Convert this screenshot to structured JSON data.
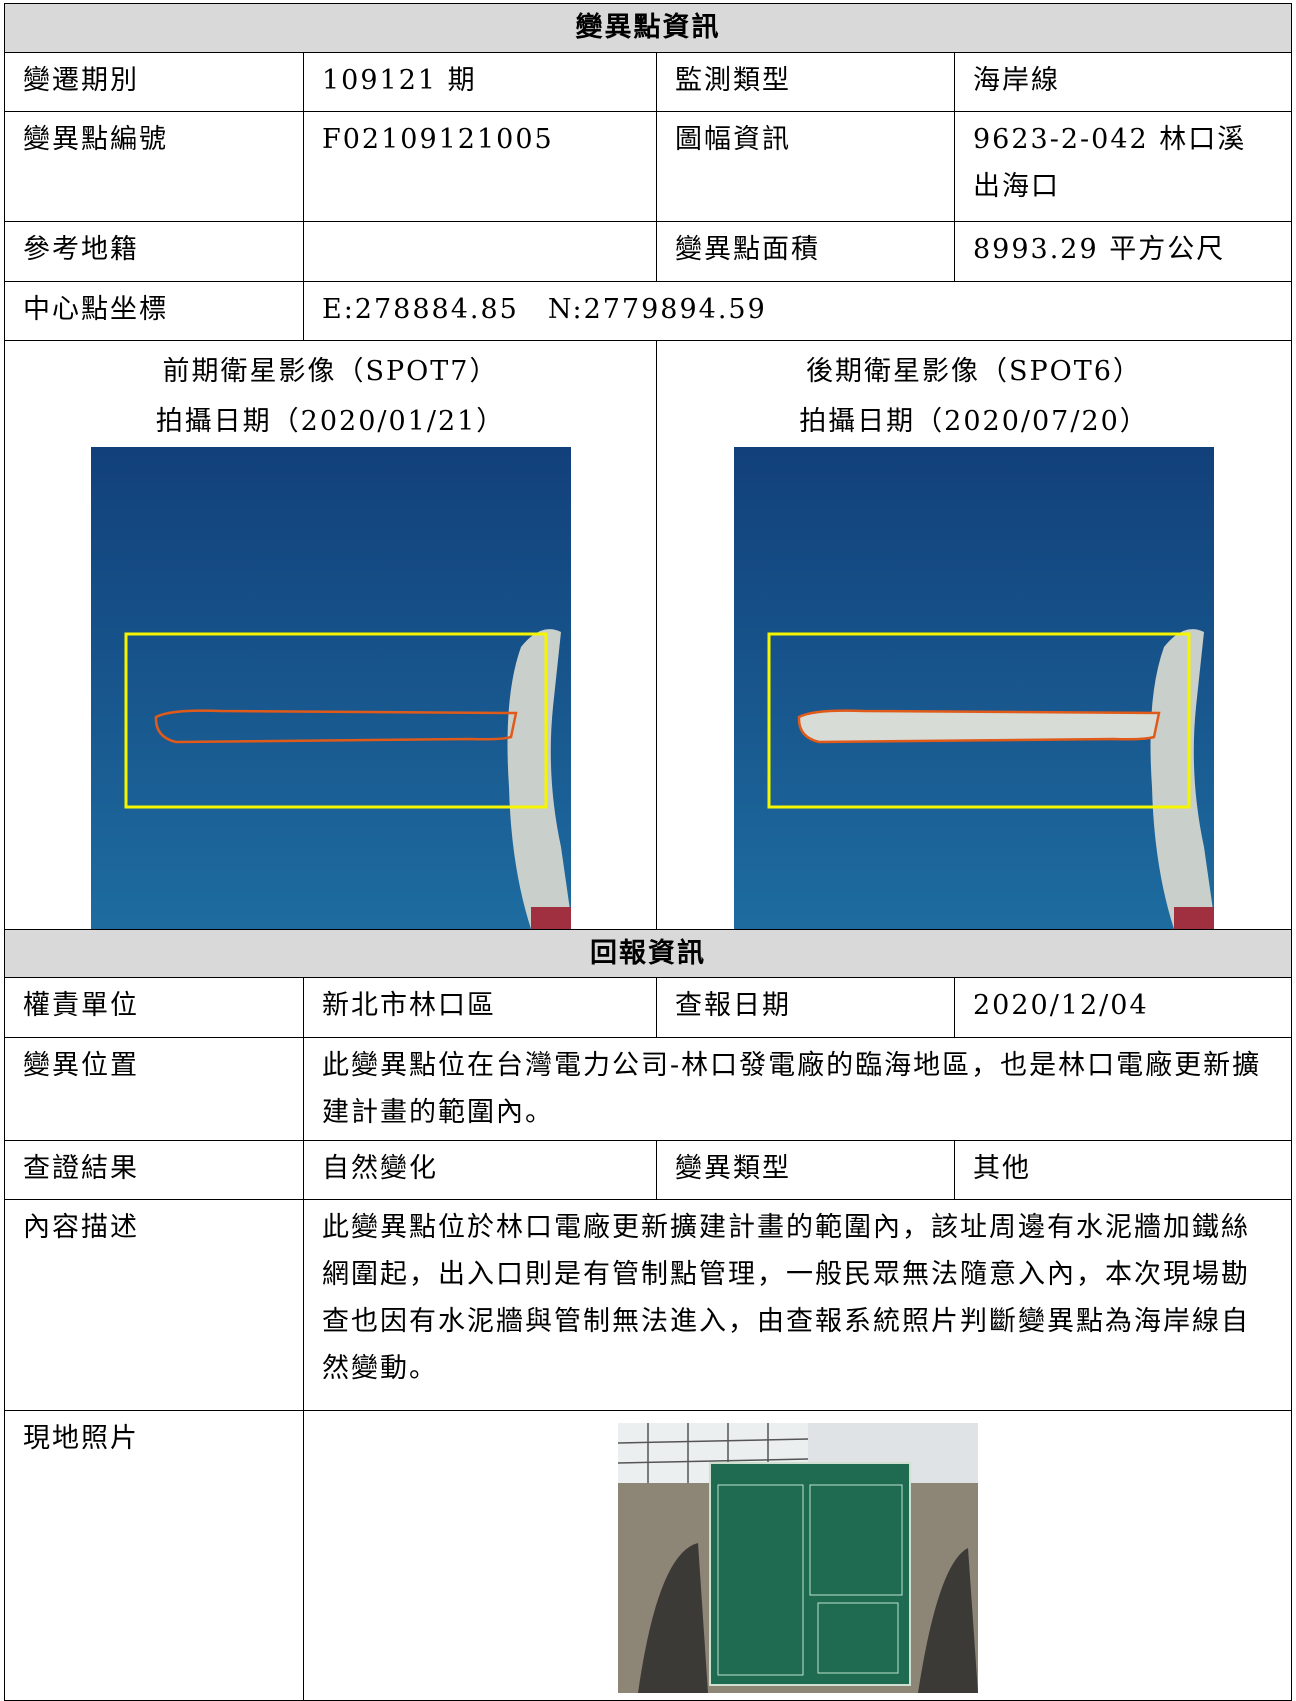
{
  "section1": {
    "title": "變異點資訊",
    "rows": [
      [
        "變遷期別",
        "109121 期",
        "監測類型",
        "海岸線"
      ],
      [
        "變異點編號",
        "F02109121005",
        "圖幅資訊",
        "9623-2-042 林口溪出海口"
      ],
      [
        "參考地籍",
        "變異點面積",
        "8993.29 平方公尺"
      ],
      [
        "中心點坐標",
        "E:278884.85　N:2779894.59"
      ]
    ],
    "images": [
      {
        "caption": "前期衛星影像（SPOT7）",
        "date": "拍攝日期（2020/01/21）"
      },
      {
        "caption": "後期衛星影像（SPOT6）",
        "date": "拍攝日期（2020/07/20）"
      }
    ]
  },
  "section2": {
    "title": "回報資訊",
    "rows": [
      [
        "權責單位",
        "新北市林口區",
        "查報日期",
        "2020/12/04"
      ],
      [
        "變異位置",
        "此變異點位在台灣電力公司-林口發電廠的臨海地區，也是林口電廠更新擴建計畫的範圍內。"
      ],
      [
        "查證結果",
        "自然變化",
        "變異類型",
        "其他"
      ],
      [
        "內容描述",
        "此變異點位於林口電廠更新擴建計畫的範圍內，該址周邊有水泥牆加鐵絲網圍起，出入口則是有管制點管理，一般民眾無法隨意入內，本次現場勘查也因有水泥牆與管制無法進入，由查報系統照片判斷變異點為海岸線自然變動。"
      ],
      [
        "現地照片"
      ]
    ]
  }
}
